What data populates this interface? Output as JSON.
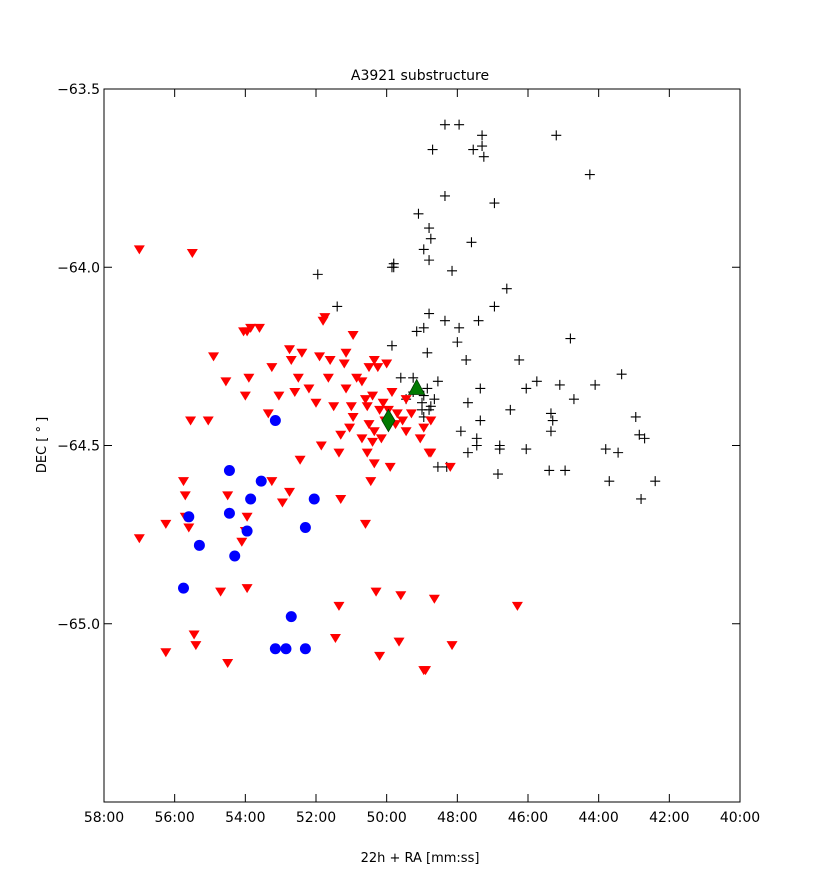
{
  "chart_data": {
    "type": "scatter",
    "title": "A3921 substructure",
    "xlabel": "22h + RA [mm:ss]",
    "ylabel": "DEC [$^\\circ$]",
    "ylabel_display": "DEC [ ° ]",
    "xlim": [
      58.0,
      40.0
    ],
    "ylim": [
      -65.5,
      -63.5
    ],
    "x_inverted": true,
    "grid": false,
    "xticks": [
      58,
      56,
      54,
      52,
      50,
      48,
      46,
      44,
      42,
      40
    ],
    "xtick_labels": [
      "58:00",
      "56:00",
      "54:00",
      "52:00",
      "50:00",
      "48:00",
      "46:00",
      "44:00",
      "42:00",
      "40:00"
    ],
    "yticks": [
      -63.5,
      -64.0,
      -64.5,
      -65.0
    ],
    "ytick_labels": [
      "−63.5",
      "−64.0",
      "−64.5",
      "−65.0"
    ],
    "series": [
      {
        "marker": "plus",
        "color": "#000000",
        "points": [
          [
            48.35,
            -63.6
          ],
          [
            47.95,
            -63.6
          ],
          [
            47.3,
            -63.63
          ],
          [
            45.2,
            -63.63
          ],
          [
            47.3,
            -63.66
          ],
          [
            48.7,
            -63.67
          ],
          [
            47.55,
            -63.67
          ],
          [
            47.25,
            -63.69
          ],
          [
            44.25,
            -63.74
          ],
          [
            48.35,
            -63.8
          ],
          [
            46.95,
            -63.82
          ],
          [
            49.1,
            -63.85
          ],
          [
            48.8,
            -63.89
          ],
          [
            48.75,
            -63.92
          ],
          [
            47.6,
            -63.93
          ],
          [
            48.95,
            -63.95
          ],
          [
            48.8,
            -63.98
          ],
          [
            49.8,
            -63.99
          ],
          [
            49.85,
            -64.0
          ],
          [
            49.8,
            -64.0
          ],
          [
            48.15,
            -64.01
          ],
          [
            51.95,
            -64.02
          ],
          [
            46.6,
            -64.06
          ],
          [
            51.4,
            -64.11
          ],
          [
            46.95,
            -64.11
          ],
          [
            48.8,
            -64.13
          ],
          [
            48.35,
            -64.15
          ],
          [
            47.4,
            -64.15
          ],
          [
            48.95,
            -64.17
          ],
          [
            49.15,
            -64.18
          ],
          [
            47.95,
            -64.17
          ],
          [
            48.0,
            -64.21
          ],
          [
            49.85,
            -64.22
          ],
          [
            44.8,
            -64.2
          ],
          [
            48.85,
            -64.24
          ],
          [
            46.25,
            -64.26
          ],
          [
            47.75,
            -64.26
          ],
          [
            49.6,
            -64.31
          ],
          [
            45.75,
            -64.32
          ],
          [
            49.25,
            -64.31
          ],
          [
            43.35,
            -64.3
          ],
          [
            45.1,
            -64.33
          ],
          [
            44.1,
            -64.33
          ],
          [
            48.55,
            -64.32
          ],
          [
            47.35,
            -64.34
          ],
          [
            46.05,
            -64.34
          ],
          [
            48.85,
            -64.34
          ],
          [
            49.25,
            -64.35
          ],
          [
            48.95,
            -64.36
          ],
          [
            49.45,
            -64.37
          ],
          [
            48.65,
            -64.37
          ],
          [
            49.0,
            -64.38
          ],
          [
            47.7,
            -64.38
          ],
          [
            48.75,
            -64.39
          ],
          [
            48.8,
            -64.4
          ],
          [
            49.0,
            -64.4
          ],
          [
            44.7,
            -64.37
          ],
          [
            46.5,
            -64.4
          ],
          [
            48.95,
            -64.42
          ],
          [
            45.35,
            -64.41
          ],
          [
            45.3,
            -64.43
          ],
          [
            47.35,
            -64.43
          ],
          [
            42.95,
            -64.42
          ],
          [
            47.9,
            -64.46
          ],
          [
            45.35,
            -64.46
          ],
          [
            42.85,
            -64.47
          ],
          [
            42.7,
            -64.48
          ],
          [
            47.45,
            -64.48
          ],
          [
            47.45,
            -64.5
          ],
          [
            46.8,
            -64.5
          ],
          [
            46.8,
            -64.51
          ],
          [
            43.8,
            -64.51
          ],
          [
            43.45,
            -64.52
          ],
          [
            46.05,
            -64.51
          ],
          [
            47.7,
            -64.52
          ],
          [
            48.55,
            -64.56
          ],
          [
            45.4,
            -64.57
          ],
          [
            44.95,
            -64.57
          ],
          [
            48.3,
            -64.56
          ],
          [
            46.85,
            -64.58
          ],
          [
            43.7,
            -64.6
          ],
          [
            42.4,
            -64.6
          ],
          [
            42.8,
            -64.65
          ]
        ]
      },
      {
        "marker": "triangle-down",
        "color": "#ff0000",
        "points": [
          [
            57.0,
            -63.95
          ],
          [
            55.5,
            -63.96
          ],
          [
            53.85,
            -64.17
          ],
          [
            53.6,
            -64.17
          ],
          [
            51.75,
            -64.14
          ],
          [
            51.8,
            -64.15
          ],
          [
            52.4,
            -64.24
          ],
          [
            54.05,
            -64.18
          ],
          [
            53.95,
            -64.18
          ],
          [
            50.95,
            -64.19
          ],
          [
            52.75,
            -64.23
          ],
          [
            51.15,
            -64.24
          ],
          [
            52.7,
            -64.26
          ],
          [
            51.9,
            -64.25
          ],
          [
            54.9,
            -64.25
          ],
          [
            50.35,
            -64.26
          ],
          [
            51.6,
            -64.26
          ],
          [
            51.2,
            -64.27
          ],
          [
            53.25,
            -64.28
          ],
          [
            50.5,
            -64.28
          ],
          [
            50.0,
            -64.27
          ],
          [
            50.25,
            -64.28
          ],
          [
            52.5,
            -64.31
          ],
          [
            51.65,
            -64.31
          ],
          [
            50.85,
            -64.31
          ],
          [
            50.7,
            -64.32
          ],
          [
            53.9,
            -64.31
          ],
          [
            54.55,
            -64.32
          ],
          [
            51.15,
            -64.34
          ],
          [
            52.6,
            -64.35
          ],
          [
            52.2,
            -64.34
          ],
          [
            50.6,
            -64.37
          ],
          [
            50.4,
            -64.36
          ],
          [
            53.05,
            -64.36
          ],
          [
            54.0,
            -64.36
          ],
          [
            49.85,
            -64.35
          ],
          [
            49.45,
            -64.37
          ],
          [
            50.1,
            -64.38
          ],
          [
            52.0,
            -64.38
          ],
          [
            51.0,
            -64.39
          ],
          [
            51.5,
            -64.39
          ],
          [
            53.35,
            -64.41
          ],
          [
            50.55,
            -64.39
          ],
          [
            49.95,
            -64.4
          ],
          [
            50.2,
            -64.4
          ],
          [
            49.7,
            -64.41
          ],
          [
            49.3,
            -64.41
          ],
          [
            50.95,
            -64.42
          ],
          [
            50.05,
            -64.43
          ],
          [
            49.55,
            -64.43
          ],
          [
            55.55,
            -64.43
          ],
          [
            55.05,
            -64.43
          ],
          [
            51.05,
            -64.45
          ],
          [
            50.5,
            -64.44
          ],
          [
            49.75,
            -64.44
          ],
          [
            48.95,
            -64.45
          ],
          [
            48.75,
            -64.43
          ],
          [
            50.35,
            -64.46
          ],
          [
            51.3,
            -64.47
          ],
          [
            50.7,
            -64.48
          ],
          [
            49.45,
            -64.46
          ],
          [
            49.05,
            -64.48
          ],
          [
            50.15,
            -64.48
          ],
          [
            51.85,
            -64.5
          ],
          [
            50.4,
            -64.49
          ],
          [
            48.75,
            -64.52
          ],
          [
            48.8,
            -64.52
          ],
          [
            50.55,
            -64.52
          ],
          [
            51.35,
            -64.52
          ],
          [
            52.45,
            -64.54
          ],
          [
            48.2,
            -64.56
          ],
          [
            50.35,
            -64.55
          ],
          [
            49.9,
            -64.56
          ],
          [
            55.75,
            -64.6
          ],
          [
            53.25,
            -64.6
          ],
          [
            52.75,
            -64.63
          ],
          [
            50.45,
            -64.6
          ],
          [
            51.3,
            -64.65
          ],
          [
            55.7,
            -64.64
          ],
          [
            54.5,
            -64.64
          ],
          [
            52.95,
            -64.66
          ],
          [
            53.95,
            -64.7
          ],
          [
            50.6,
            -64.72
          ],
          [
            56.25,
            -64.72
          ],
          [
            57.0,
            -64.76
          ],
          [
            54.0,
            -64.74
          ],
          [
            54.1,
            -64.77
          ],
          [
            55.7,
            -64.7
          ],
          [
            55.6,
            -64.73
          ],
          [
            54.7,
            -64.91
          ],
          [
            53.95,
            -64.9
          ],
          [
            49.6,
            -64.92
          ],
          [
            48.65,
            -64.93
          ],
          [
            50.3,
            -64.91
          ],
          [
            46.3,
            -64.95
          ],
          [
            51.35,
            -64.95
          ],
          [
            55.45,
            -65.03
          ],
          [
            51.45,
            -65.04
          ],
          [
            55.4,
            -65.06
          ],
          [
            49.65,
            -65.05
          ],
          [
            48.15,
            -65.06
          ],
          [
            56.25,
            -65.08
          ],
          [
            50.2,
            -65.09
          ],
          [
            54.5,
            -65.11
          ],
          [
            48.95,
            -65.13
          ],
          [
            48.9,
            -65.13
          ]
        ]
      },
      {
        "marker": "circle",
        "color": "#0000ff",
        "points": [
          [
            53.15,
            -64.43
          ],
          [
            54.45,
            -64.57
          ],
          [
            53.55,
            -64.6
          ],
          [
            54.45,
            -64.69
          ],
          [
            53.85,
            -64.65
          ],
          [
            52.05,
            -64.65
          ],
          [
            55.6,
            -64.7
          ],
          [
            53.95,
            -64.74
          ],
          [
            52.3,
            -64.73
          ],
          [
            55.3,
            -64.78
          ],
          [
            54.3,
            -64.81
          ],
          [
            55.75,
            -64.9
          ],
          [
            52.7,
            -64.98
          ],
          [
            53.15,
            -65.07
          ],
          [
            52.85,
            -65.07
          ],
          [
            52.3,
            -65.07
          ]
        ]
      },
      {
        "marker": "triangle-up",
        "color": "#007a00",
        "points": [
          [
            49.15,
            -64.34
          ]
        ]
      },
      {
        "marker": "diamond",
        "color": "#007a00",
        "points": [
          [
            49.95,
            -64.43
          ]
        ]
      }
    ]
  }
}
